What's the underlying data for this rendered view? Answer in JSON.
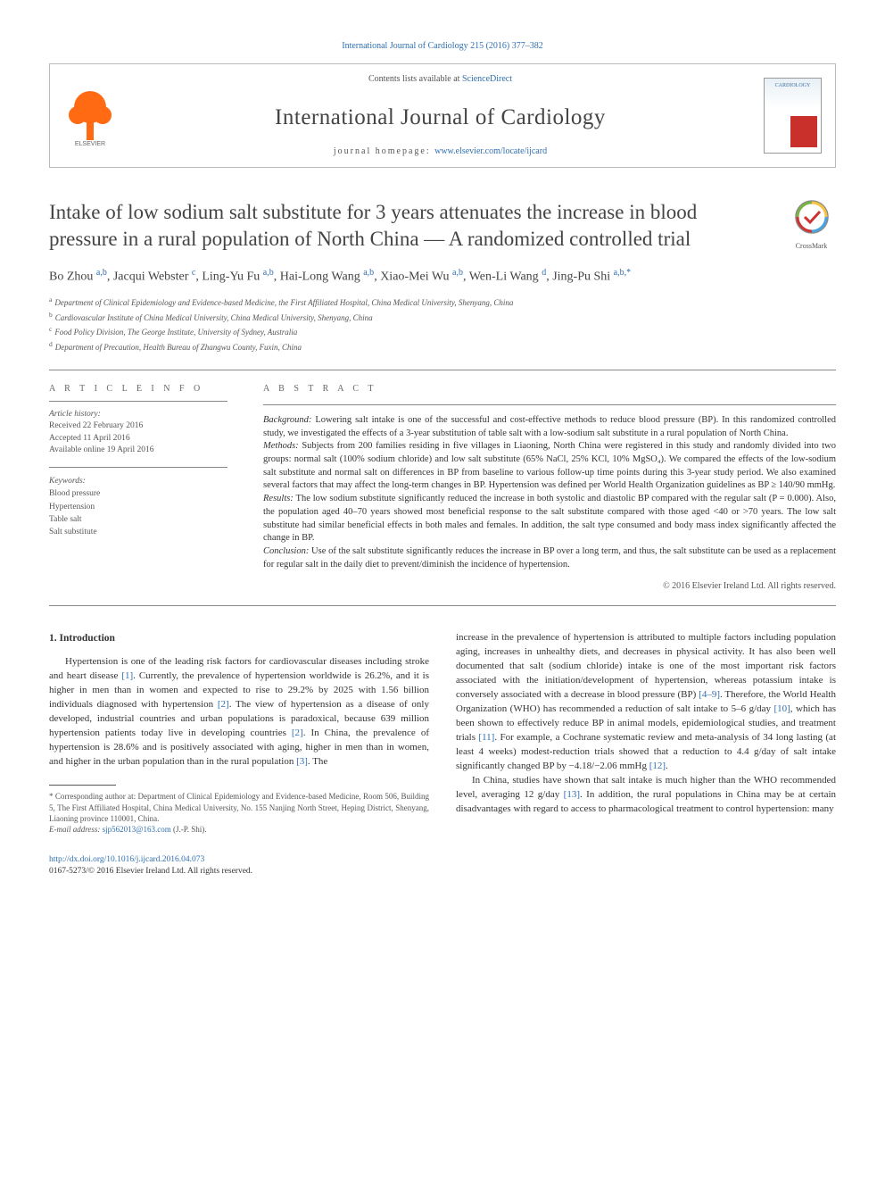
{
  "top_citation": "International Journal of Cardiology 215 (2016) 377–382",
  "header": {
    "contents_prefix": "Contents lists available at ",
    "contents_link": "ScienceDirect",
    "journal_name": "International Journal of Cardiology",
    "homepage_prefix": "journal homepage: ",
    "homepage_link": "www.elsevier.com/locate/ijcard",
    "cover_label": "CARDIOLOGY"
  },
  "title": "Intake of low sodium salt substitute for 3 years attenuates the increase in blood pressure in a rural population of North China — A randomized controlled trial",
  "crossmark_label": "CrossMark",
  "authors_html": "Bo Zhou <a>a,b</a>, Jacqui Webster <a>c</a>, Ling-Yu Fu <a>a,b</a>, Hai-Long Wang <a>a,b</a>, Xiao-Mei Wu <a>a,b</a>, Wen-Li Wang <a>d</a>, Jing-Pu Shi <a>a,b,</a><span class='star'>*</span>",
  "affiliations": {
    "a": "Department of Clinical Epidemiology and Evidence-based Medicine, the First Affiliated Hospital, China Medical University, Shenyang, China",
    "b": "Cardiovascular Institute of China Medical University, China Medical University, Shenyang, China",
    "c": "Food Policy Division, The George Institute, University of Sydney, Australia",
    "d": "Department of Precaution, Health Bureau of Zhangwu County, Fuxin, China"
  },
  "article_info": {
    "heading": "A R T I C L E   I N F O",
    "history_label": "Article history:",
    "received": "Received 22 February 2016",
    "accepted": "Accepted 11 April 2016",
    "online": "Available online 19 April 2016",
    "keywords_label": "Keywords:",
    "keywords": [
      "Blood pressure",
      "Hypertension",
      "Table salt",
      "Salt substitute"
    ]
  },
  "abstract": {
    "heading": "A B S T R A C T",
    "background_label": "Background:",
    "background": "Lowering salt intake is one of the successful and cost-effective methods to reduce blood pressure (BP). In this randomized controlled study, we investigated the effects of a 3-year substitution of table salt with a low-sodium salt substitute in a rural population of North China.",
    "methods_label": "Methods:",
    "methods": "Subjects from 200 families residing in five villages in Liaoning, North China were registered in this study and randomly divided into two groups: normal salt (100% sodium chloride) and low salt substitute (65% NaCl, 25% KCl, 10% MgSO₄). We compared the effects of the low-sodium salt substitute and normal salt on differences in BP from baseline to various follow-up time points during this 3-year study period. We also examined several factors that may affect the long-term changes in BP. Hypertension was defined per World Health Organization guidelines as BP ≥ 140/90 mmHg.",
    "results_label": "Results:",
    "results": "The low sodium substitute significantly reduced the increase in both systolic and diastolic BP compared with the regular salt (P = 0.000). Also, the population aged 40–70 years showed most beneficial response to the salt substitute compared with those aged <40 or >70 years. The low salt substitute had similar beneficial effects in both males and females. In addition, the salt type consumed and body mass index significantly affected the change in BP.",
    "conclusion_label": "Conclusion:",
    "conclusion": "Use of the salt substitute significantly reduces the increase in BP over a long term, and thus, the salt substitute can be used as a replacement for regular salt in the daily diet to prevent/diminish the incidence of hypertension.",
    "copyright": "© 2016 Elsevier Ireland Ltd. All rights reserved."
  },
  "section1": {
    "heading": "1. Introduction",
    "para1": "Hypertension is one of the leading risk factors for cardiovascular diseases including stroke and heart disease [1]. Currently, the prevalence of hypertension worldwide is 26.2%, and it is higher in men than in women and expected to rise to 29.2% by 2025 with 1.56 billion individuals diagnosed with hypertension [2]. The view of hypertension as a disease of only developed, industrial countries and urban populations is paradoxical, because 639 million hypertension patients today live in developing countries [2]. In China, the prevalence of hypertension is 28.6% and is positively associated with aging, higher in men than in women, and higher in the urban population than in the rural population [3]. The",
    "para2": "increase in the prevalence of hypertension is attributed to multiple factors including population aging, increases in unhealthy diets, and decreases in physical activity. It has also been well documented that salt (sodium chloride) intake is one of the most important risk factors associated with the initiation/development of hypertension, whereas potassium intake is conversely associated with a decrease in blood pressure (BP) [4–9]. Therefore, the World Health Organization (WHO) has recommended a reduction of salt intake to 5–6 g/day [10], which has been shown to effectively reduce BP in animal models, epidemiological studies, and treatment trials [11]. For example, a Cochrane systematic review and meta-analysis of 34 long lasting (at least 4 weeks) modest-reduction trials showed that a reduction to 4.4 g/day of salt intake significantly changed BP by −4.18/−2.06 mmHg [12].",
    "para3": "In China, studies have shown that salt intake is much higher than the WHO recommended level, averaging 12 g/day [13]. In addition, the rural populations in China may be at certain disadvantages with regard to access to pharmacological treatment to control hypertension: many"
  },
  "footnote": {
    "corr_label": "* Corresponding author at:",
    "corr_text": "Department of Clinical Epidemiology and Evidence-based Medicine, Room 506, Building 5, The First Affiliated Hospital, China Medical University, No. 155 Nanjing North Street, Heping District, Shenyang, Liaoning province 110001, China.",
    "email_label": "E-mail address:",
    "email": "sjp562013@163.com",
    "email_suffix": " (J.-P. Shi)."
  },
  "footer": {
    "doi": "http://dx.doi.org/10.1016/j.ijcard.2016.04.073",
    "issn_line": "0167-5273/© 2016 Elsevier Ireland Ltd. All rights reserved."
  },
  "refs": {
    "r1": "[1]",
    "r2": "[2]",
    "r3": "[3]",
    "r49": "[4–9]",
    "r10": "[10]",
    "r11": "[11]",
    "r12": "[12]",
    "r13": "[13]"
  },
  "colors": {
    "link": "#2f6fb0",
    "elsevier": "#ff6a13",
    "text": "#333333",
    "muted": "#555555",
    "rule": "#888888"
  }
}
